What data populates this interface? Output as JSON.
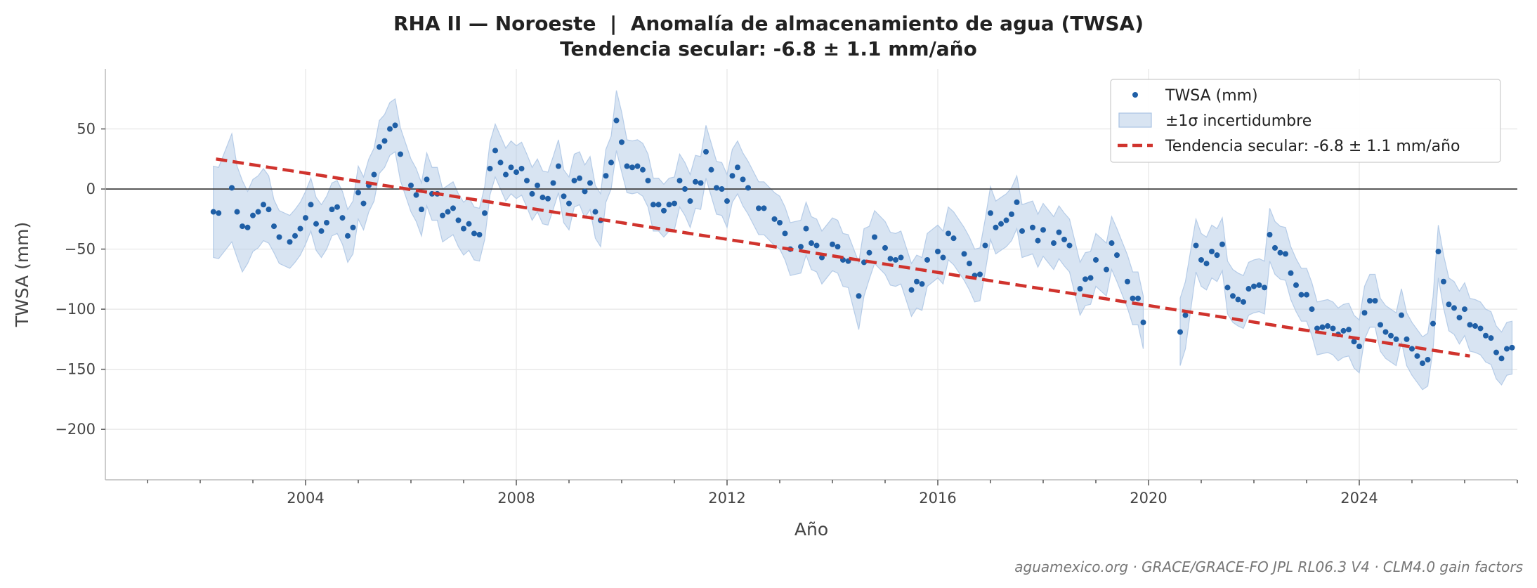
{
  "chart_data": {
    "type": "scatter",
    "title": "RHA II — Noroeste  |  Anomalía de almacenamiento de agua (TWSA)",
    "subtitle": "Tendencia secular: -6.8 ± 1.1 mm/año",
    "xlabel": "Año",
    "ylabel": "TWSA (mm)",
    "xlim": [
      2000.2,
      2027.0
    ],
    "ylim": [
      -242,
      100
    ],
    "x_ticks": [
      2004,
      2008,
      2012,
      2016,
      2020,
      2024
    ],
    "y_ticks": [
      50,
      0,
      -50,
      -100,
      -150,
      -200
    ],
    "y_tick_labels": [
      "50",
      "0",
      "−50",
      "−100",
      "−150",
      "−200"
    ],
    "grid": true,
    "zero_line": true,
    "legend_position": "top-right",
    "legend": [
      {
        "key": "points",
        "label": "TWSA (mm)"
      },
      {
        "key": "band",
        "label": "±1σ incertidumbre"
      },
      {
        "key": "trend",
        "label": "Tendencia secular: -6.8 ± 1.1 mm/año"
      }
    ],
    "colors": {
      "points": "#1f5fa6",
      "band": "#a9c3e3",
      "trend": "#d0332d",
      "zero": "#333333",
      "grid": "#e6e6e6",
      "axis": "#bbbbbb",
      "text": "#444444"
    },
    "trend": {
      "x": [
        2002.3,
        2026.1
      ],
      "y": [
        25,
        -139
      ]
    },
    "uncertainty": [
      [
        2002.25,
        -19,
        38
      ],
      [
        2002.35,
        -20,
        38
      ],
      [
        2002.6,
        1,
        45
      ],
      [
        2002.7,
        -19,
        38
      ],
      [
        2002.8,
        -31,
        38
      ],
      [
        2002.9,
        -32,
        30
      ],
      [
        2003.0,
        -22,
        30
      ],
      [
        2003.1,
        -19,
        30
      ],
      [
        2003.2,
        -13,
        30
      ],
      [
        2003.3,
        -17,
        28
      ],
      [
        2003.4,
        -31,
        22
      ],
      [
        2003.5,
        -40,
        22
      ],
      [
        2003.7,
        -44,
        22
      ],
      [
        2003.8,
        -39,
        22
      ],
      [
        2003.9,
        -33,
        22
      ],
      [
        2004.0,
        -24,
        22
      ],
      [
        2004.1,
        -13,
        22
      ],
      [
        2004.2,
        -29,
        22
      ],
      [
        2004.3,
        -35,
        22
      ],
      [
        2004.4,
        -28,
        22
      ],
      [
        2004.5,
        -17,
        22
      ],
      [
        2004.6,
        -15,
        22
      ],
      [
        2004.7,
        -24,
        22
      ],
      [
        2004.8,
        -39,
        22
      ],
      [
        2004.9,
        -32,
        22
      ],
      [
        2005.0,
        -3,
        22
      ],
      [
        2005.1,
        -12,
        22
      ],
      [
        2005.2,
        3,
        22
      ],
      [
        2005.3,
        12,
        22
      ],
      [
        2005.4,
        35,
        22
      ],
      [
        2005.5,
        40,
        22
      ],
      [
        2005.6,
        50,
        22
      ],
      [
        2005.7,
        53,
        22
      ],
      [
        2005.8,
        29,
        22
      ],
      [
        2006.0,
        3,
        22
      ],
      [
        2006.1,
        -5,
        22
      ],
      [
        2006.2,
        -17,
        22
      ],
      [
        2006.3,
        8,
        22
      ],
      [
        2006.4,
        -4,
        22
      ],
      [
        2006.5,
        -4,
        22
      ],
      [
        2006.6,
        -22,
        22
      ],
      [
        2006.7,
        -19,
        22
      ],
      [
        2006.8,
        -16,
        22
      ],
      [
        2006.9,
        -26,
        22
      ],
      [
        2007.0,
        -33,
        22
      ],
      [
        2007.1,
        -29,
        22
      ],
      [
        2007.2,
        -37,
        22
      ],
      [
        2007.3,
        -38,
        22
      ],
      [
        2007.4,
        -20,
        22
      ],
      [
        2007.5,
        17,
        22
      ],
      [
        2007.6,
        32,
        22
      ],
      [
        2007.7,
        22,
        22
      ],
      [
        2007.8,
        12,
        22
      ],
      [
        2007.9,
        18,
        22
      ],
      [
        2008.0,
        14,
        22
      ],
      [
        2008.1,
        17,
        22
      ],
      [
        2008.2,
        7,
        22
      ],
      [
        2008.3,
        -4,
        22
      ],
      [
        2008.4,
        3,
        22
      ],
      [
        2008.5,
        -7,
        22
      ],
      [
        2008.6,
        -8,
        22
      ],
      [
        2008.7,
        5,
        22
      ],
      [
        2008.8,
        19,
        22
      ],
      [
        2008.9,
        -6,
        22
      ],
      [
        2009.0,
        -12,
        22
      ],
      [
        2009.1,
        7,
        22
      ],
      [
        2009.2,
        9,
        22
      ],
      [
        2009.3,
        -2,
        22
      ],
      [
        2009.4,
        5,
        22
      ],
      [
        2009.5,
        -19,
        22
      ],
      [
        2009.6,
        -26,
        22
      ],
      [
        2009.7,
        11,
        22
      ],
      [
        2009.8,
        22,
        22
      ],
      [
        2009.9,
        57,
        25
      ],
      [
        2010.0,
        39,
        25
      ],
      [
        2010.1,
        19,
        22
      ],
      [
        2010.2,
        18,
        22
      ],
      [
        2010.3,
        19,
        22
      ],
      [
        2010.4,
        16,
        22
      ],
      [
        2010.5,
        7,
        22
      ],
      [
        2010.6,
        -13,
        22
      ],
      [
        2010.7,
        -13,
        22
      ],
      [
        2010.8,
        -18,
        22
      ],
      [
        2010.9,
        -13,
        22
      ],
      [
        2011.0,
        -12,
        22
      ],
      [
        2011.1,
        7,
        22
      ],
      [
        2011.2,
        0,
        22
      ],
      [
        2011.3,
        -10,
        22
      ],
      [
        2011.4,
        6,
        22
      ],
      [
        2011.5,
        5,
        22
      ],
      [
        2011.6,
        31,
        22
      ],
      [
        2011.7,
        16,
        22
      ],
      [
        2011.8,
        1,
        22
      ],
      [
        2011.9,
        0,
        22
      ],
      [
        2012.0,
        -10,
        22
      ],
      [
        2012.1,
        11,
        22
      ],
      [
        2012.2,
        18,
        22
      ],
      [
        2012.3,
        8,
        22
      ],
      [
        2012.4,
        1,
        22
      ],
      [
        2012.6,
        -16,
        22
      ],
      [
        2012.7,
        -16,
        22
      ],
      [
        2012.9,
        -25,
        22
      ],
      [
        2013.0,
        -28,
        22
      ],
      [
        2013.1,
        -37,
        22
      ],
      [
        2013.2,
        -50,
        22
      ],
      [
        2013.4,
        -48,
        22
      ],
      [
        2013.5,
        -33,
        22
      ],
      [
        2013.6,
        -45,
        22
      ],
      [
        2013.7,
        -47,
        22
      ],
      [
        2013.8,
        -57,
        22
      ],
      [
        2014.0,
        -46,
        22
      ],
      [
        2014.1,
        -48,
        22
      ],
      [
        2014.2,
        -59,
        22
      ],
      [
        2014.3,
        -60,
        22
      ],
      [
        2014.5,
        -89,
        28
      ],
      [
        2014.6,
        -61,
        28
      ],
      [
        2014.7,
        -53,
        22
      ],
      [
        2014.8,
        -40,
        22
      ],
      [
        2015.0,
        -49,
        22
      ],
      [
        2015.1,
        -58,
        22
      ],
      [
        2015.2,
        -59,
        22
      ],
      [
        2015.3,
        -57,
        22
      ],
      [
        2015.5,
        -84,
        22
      ],
      [
        2015.6,
        -77,
        22
      ],
      [
        2015.7,
        -79,
        22
      ],
      [
        2015.8,
        -59,
        22
      ],
      [
        2016.0,
        -52,
        22
      ],
      [
        2016.1,
        -57,
        22
      ],
      [
        2016.2,
        -37,
        22
      ],
      [
        2016.3,
        -41,
        22
      ],
      [
        2016.5,
        -54,
        22
      ],
      [
        2016.6,
        -62,
        22
      ],
      [
        2016.7,
        -72,
        22
      ],
      [
        2016.8,
        -71,
        22
      ],
      [
        2016.9,
        -47,
        22
      ],
      [
        2017.0,
        -20,
        22
      ],
      [
        2017.1,
        -32,
        22
      ],
      [
        2017.2,
        -29,
        22
      ],
      [
        2017.3,
        -26,
        22
      ],
      [
        2017.4,
        -21,
        22
      ],
      [
        2017.5,
        -11,
        22
      ],
      [
        2017.6,
        -35,
        22
      ],
      [
        2017.8,
        -32,
        22
      ],
      [
        2017.9,
        -43,
        22
      ],
      [
        2018.0,
        -34,
        22
      ],
      [
        2018.2,
        -45,
        22
      ],
      [
        2018.3,
        -36,
        22
      ],
      [
        2018.4,
        -42,
        22
      ],
      [
        2018.5,
        -47,
        22
      ],
      [
        2018.7,
        -83,
        22
      ],
      [
        2018.8,
        -75,
        22
      ],
      [
        2018.9,
        -74,
        22
      ],
      [
        2019.0,
        -59,
        22
      ],
      [
        2019.2,
        -67,
        22
      ],
      [
        2019.3,
        -45,
        22
      ],
      [
        2019.4,
        -55,
        22
      ],
      [
        2019.6,
        -77,
        22
      ],
      [
        2019.7,
        -91,
        22
      ],
      [
        2019.8,
        -91,
        22
      ],
      [
        2019.9,
        -111,
        22
      ],
      [
        2020.6,
        -119,
        28
      ],
      [
        2020.7,
        -105,
        28
      ],
      [
        2020.9,
        -47,
        22
      ],
      [
        2021.0,
        -59,
        22
      ],
      [
        2021.1,
        -62,
        22
      ],
      [
        2021.2,
        -52,
        22
      ],
      [
        2021.3,
        -55,
        22
      ],
      [
        2021.4,
        -46,
        22
      ],
      [
        2021.5,
        -82,
        22
      ],
      [
        2021.6,
        -89,
        22
      ],
      [
        2021.7,
        -92,
        22
      ],
      [
        2021.8,
        -94,
        22
      ],
      [
        2021.9,
        -83,
        22
      ],
      [
        2022.0,
        -81,
        22
      ],
      [
        2022.1,
        -80,
        22
      ],
      [
        2022.2,
        -82,
        22
      ],
      [
        2022.3,
        -38,
        22
      ],
      [
        2022.4,
        -49,
        22
      ],
      [
        2022.5,
        -53,
        22
      ],
      [
        2022.6,
        -54,
        22
      ],
      [
        2022.7,
        -70,
        22
      ],
      [
        2022.8,
        -80,
        22
      ],
      [
        2022.9,
        -88,
        22
      ],
      [
        2023.0,
        -88,
        22
      ],
      [
        2023.1,
        -100,
        22
      ],
      [
        2023.2,
        -116,
        22
      ],
      [
        2023.3,
        -115,
        22
      ],
      [
        2023.4,
        -114,
        22
      ],
      [
        2023.5,
        -116,
        22
      ],
      [
        2023.6,
        -121,
        22
      ],
      [
        2023.7,
        -118,
        22
      ],
      [
        2023.8,
        -117,
        22
      ],
      [
        2023.9,
        -127,
        22
      ],
      [
        2024.0,
        -131,
        22
      ],
      [
        2024.1,
        -103,
        22
      ],
      [
        2024.2,
        -93,
        22
      ],
      [
        2024.3,
        -93,
        22
      ],
      [
        2024.4,
        -113,
        22
      ],
      [
        2024.5,
        -119,
        22
      ],
      [
        2024.6,
        -122,
        22
      ],
      [
        2024.7,
        -125,
        22
      ],
      [
        2024.8,
        -105,
        22
      ],
      [
        2024.9,
        -125,
        22
      ],
      [
        2025.0,
        -133,
        22
      ],
      [
        2025.1,
        -139,
        22
      ],
      [
        2025.2,
        -145,
        22
      ],
      [
        2025.3,
        -142,
        22
      ],
      [
        2025.4,
        -112,
        22
      ],
      [
        2025.5,
        -52,
        22
      ],
      [
        2025.6,
        -77,
        22
      ],
      [
        2025.7,
        -96,
        22
      ],
      [
        2025.8,
        -99,
        22
      ],
      [
        2025.9,
        -107,
        22
      ],
      [
        2026.0,
        -100,
        22
      ],
      [
        2026.1,
        -113,
        22
      ],
      [
        2026.2,
        -114,
        22
      ],
      [
        2026.3,
        -116,
        22
      ],
      [
        2026.4,
        -122,
        22
      ],
      [
        2026.5,
        -124,
        22
      ],
      [
        2026.6,
        -136,
        22
      ],
      [
        2026.7,
        -141,
        22
      ],
      [
        2026.8,
        -133,
        22
      ],
      [
        2026.9,
        -132,
        22
      ]
    ],
    "points": [],
    "credit": "aguamexico.org · GRACE/GRACE-FO JPL RL06.3 V4 · CLM4.0 gain factors"
  }
}
